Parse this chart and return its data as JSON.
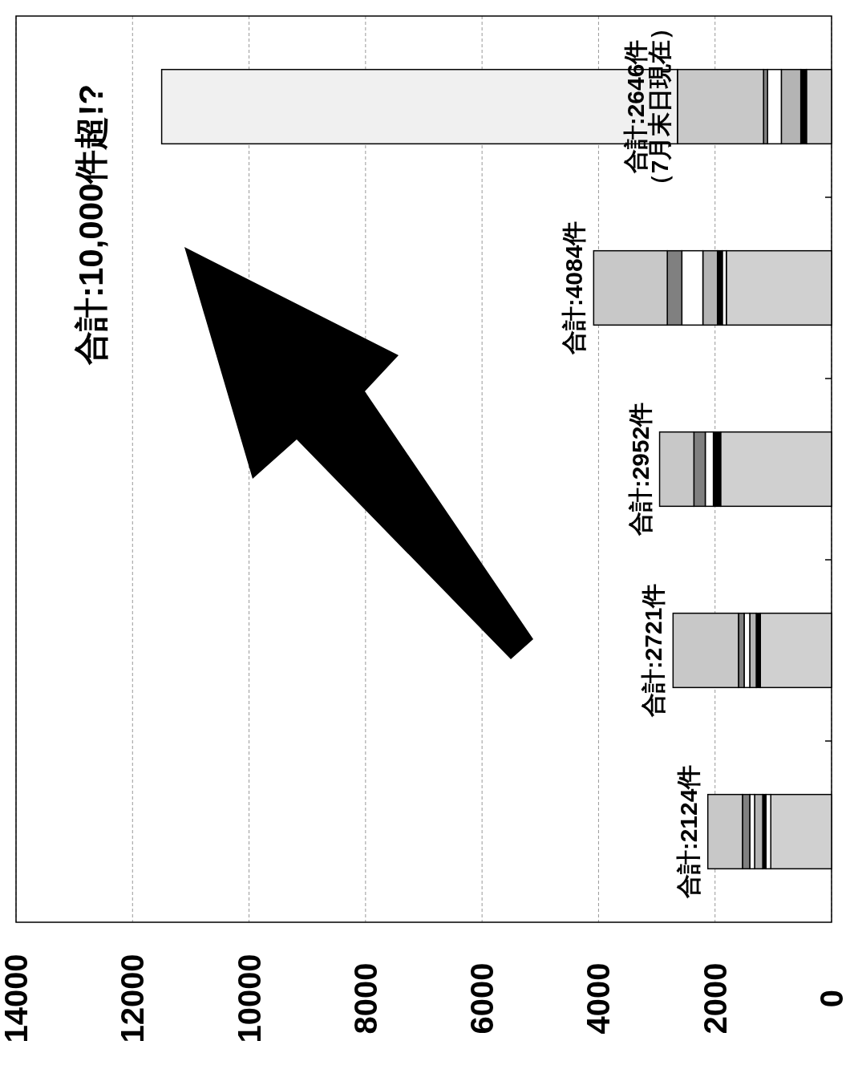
{
  "chart_data": {
    "type": "bar",
    "orientation": "horizontal",
    "stacked": true,
    "categories": [
      null,
      null,
      null,
      null,
      null
    ],
    "series": [
      {
        "color": "#d0d0d0",
        "values": [
          431,
          1807,
          1904,
          1223,
          1043
        ]
      },
      {
        "color": "#ffffff",
        "values": [
          null,
          69,
          null,
          null,
          83
        ]
      },
      {
        "color": "#000000",
        "values": [
          97,
          83,
          125,
          70,
          56
        ]
      },
      {
        "color": "#b4b4b4",
        "values": [
          334,
          250,
          null,
          111,
          139
        ]
      },
      {
        "color": "#ffffff",
        "values": [
          236,
          361,
          139,
          97,
          83
        ]
      },
      {
        "color": "#808080",
        "values": [
          70,
          250,
          195,
          97,
          125
        ]
      },
      {
        "color": "#c8c8c8",
        "values": [
          1478,
          1264,
          589,
          1123,
          595
        ]
      },
      {
        "color": "#f0f0f0",
        "values": [
          8854,
          null,
          null,
          null,
          null
        ]
      }
    ],
    "xlim": [
      14000,
      0
    ],
    "xticks": [
      0,
      2000,
      4000,
      6000,
      8000,
      10000,
      12000,
      14000
    ],
    "grid": "x",
    "annotations": [
      "合計:10,000件超!?",
      "（7月末日現在）",
      {
        "text": "合計:2646件",
        "x": 2646
      },
      {
        "text": "合計:4084件",
        "x": 4084
      },
      {
        "text": "合計:2952件",
        "x": 2952
      },
      {
        "text": "合計:2721件",
        "x": 2721
      },
      {
        "text": "合計:2124件",
        "x": 2124
      }
    ]
  }
}
